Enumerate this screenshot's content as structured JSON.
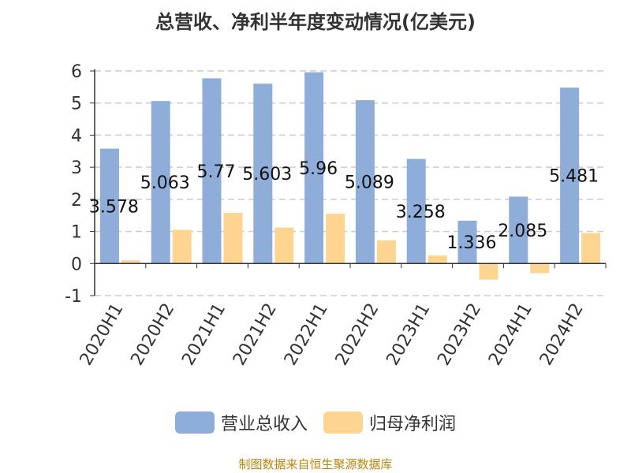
{
  "title": "总营收、净利半年度变动情况(亿美元)",
  "source": "制图数据来自恒生聚源数据库",
  "colors": {
    "revenue": "#8eadd9",
    "profit": "#fdd591",
    "axis": "#333333",
    "grid": "#cccccc"
  },
  "chart_data": {
    "type": "bar",
    "title": "总营收、净利半年度变动情况(亿美元)",
    "categories": [
      "2020H1",
      "2020H2",
      "2021H1",
      "2021H2",
      "2022H1",
      "2022H2",
      "2023H1",
      "2023H2",
      "2024H1",
      "2024H2"
    ],
    "series": [
      {
        "name": "营业总收入",
        "values": [
          3.578,
          5.063,
          5.77,
          5.603,
          5.96,
          5.089,
          3.258,
          1.336,
          2.085,
          5.481
        ]
      },
      {
        "name": "归母净利润",
        "values": [
          0.1,
          1.05,
          1.58,
          1.12,
          1.55,
          0.72,
          0.25,
          -0.5,
          -0.3,
          0.95
        ]
      }
    ],
    "data_labels": [
      "3.578",
      "5.063",
      "5.77",
      "5.603",
      "5.96",
      "5.089",
      "3.258",
      "1.336",
      "2.085",
      "5.481"
    ],
    "yticks": [
      "6",
      "5",
      "4",
      "3",
      "2",
      "1",
      "0",
      "-1"
    ],
    "ylim": [
      -1,
      6
    ],
    "grid": true,
    "legend_position": "bottom"
  }
}
